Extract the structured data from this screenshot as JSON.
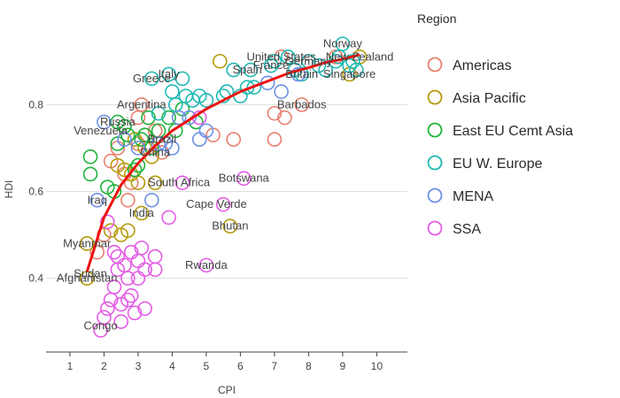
{
  "chart_data": {
    "type": "scatter",
    "xlabel": "CPI",
    "ylabel": "HDI",
    "xlim": [
      0.3,
      10.9
    ],
    "ylim": [
      0.23,
      0.98
    ],
    "xticks": [
      1,
      2,
      3,
      4,
      5,
      6,
      7,
      8,
      9,
      10
    ],
    "yticks": [
      0.4,
      0.6,
      0.8
    ],
    "ytick_labels": [
      "0.4",
      "0.6",
      "0.8"
    ],
    "grid": true,
    "legend": {
      "title": "Region",
      "placement": "right"
    },
    "series": [
      {
        "name": "Americas",
        "color": "#e8806f",
        "points": [
          {
            "x": 1.8,
            "y": 0.46
          },
          {
            "x": 2.0,
            "y": 0.5
          },
          {
            "x": 2.2,
            "y": 0.67
          },
          {
            "x": 2.4,
            "y": 0.7
          },
          {
            "x": 2.6,
            "y": 0.64
          },
          {
            "x": 2.7,
            "y": 0.58
          },
          {
            "x": 2.8,
            "y": 0.62
          },
          {
            "x": 3.0,
            "y": 0.71
          },
          {
            "x": 3.0,
            "y": 0.77
          },
          {
            "x": 3.1,
            "y": 0.8
          },
          {
            "x": 3.2,
            "y": 0.73
          },
          {
            "x": 3.3,
            "y": 0.7
          },
          {
            "x": 3.5,
            "y": 0.74
          },
          {
            "x": 3.7,
            "y": 0.69
          },
          {
            "x": 5.2,
            "y": 0.73
          },
          {
            "x": 5.8,
            "y": 0.72
          },
          {
            "x": 7.0,
            "y": 0.72
          },
          {
            "x": 7.0,
            "y": 0.78
          },
          {
            "x": 7.3,
            "y": 0.77
          },
          {
            "x": 7.8,
            "y": 0.8
          },
          {
            "x": 7.2,
            "y": 0.91
          },
          {
            "x": 8.8,
            "y": 0.91
          }
        ]
      },
      {
        "name": "Asia Pacific",
        "color": "#b59a0c",
        "points": [
          {
            "x": 1.5,
            "y": 0.48
          },
          {
            "x": 1.5,
            "y": 0.4
          },
          {
            "x": 2.2,
            "y": 0.51
          },
          {
            "x": 2.4,
            "y": 0.66
          },
          {
            "x": 2.5,
            "y": 0.5
          },
          {
            "x": 2.6,
            "y": 0.65
          },
          {
            "x": 2.7,
            "y": 0.51
          },
          {
            "x": 2.8,
            "y": 0.64
          },
          {
            "x": 2.9,
            "y": 0.72
          },
          {
            "x": 3.0,
            "y": 0.62
          },
          {
            "x": 3.1,
            "y": 0.55
          },
          {
            "x": 3.2,
            "y": 0.7
          },
          {
            "x": 3.4,
            "y": 0.68
          },
          {
            "x": 3.5,
            "y": 0.62
          },
          {
            "x": 5.7,
            "y": 0.52
          },
          {
            "x": 5.4,
            "y": 0.9
          },
          {
            "x": 9.2,
            "y": 0.87
          },
          {
            "x": 9.5,
            "y": 0.91
          }
        ]
      },
      {
        "name": "East EU Cemt Asia",
        "color": "#1fb33a",
        "points": [
          {
            "x": 1.6,
            "y": 0.68
          },
          {
            "x": 1.6,
            "y": 0.64
          },
          {
            "x": 2.1,
            "y": 0.61
          },
          {
            "x": 2.3,
            "y": 0.6
          },
          {
            "x": 2.4,
            "y": 0.71
          },
          {
            "x": 2.4,
            "y": 0.76
          },
          {
            "x": 2.6,
            "y": 0.75
          },
          {
            "x": 2.7,
            "y": 0.73
          },
          {
            "x": 2.9,
            "y": 0.65
          },
          {
            "x": 3.0,
            "y": 0.66
          },
          {
            "x": 3.1,
            "y": 0.72
          },
          {
            "x": 3.2,
            "y": 0.73
          },
          {
            "x": 3.3,
            "y": 0.77
          },
          {
            "x": 3.4,
            "y": 0.7
          },
          {
            "x": 3.6,
            "y": 0.74
          },
          {
            "x": 3.9,
            "y": 0.77
          },
          {
            "x": 4.1,
            "y": 0.74
          },
          {
            "x": 4.3,
            "y": 0.79
          },
          {
            "x": 4.7,
            "y": 0.76
          }
        ]
      },
      {
        "name": "EU W. Europe",
        "color": "#1fb9b4",
        "points": [
          {
            "x": 3.4,
            "y": 0.86
          },
          {
            "x": 3.6,
            "y": 0.78
          },
          {
            "x": 3.9,
            "y": 0.87
          },
          {
            "x": 4.0,
            "y": 0.83
          },
          {
            "x": 4.1,
            "y": 0.8
          },
          {
            "x": 4.3,
            "y": 0.86
          },
          {
            "x": 4.4,
            "y": 0.82
          },
          {
            "x": 4.6,
            "y": 0.81
          },
          {
            "x": 4.8,
            "y": 0.82
          },
          {
            "x": 5.0,
            "y": 0.81
          },
          {
            "x": 5.5,
            "y": 0.82
          },
          {
            "x": 5.6,
            "y": 0.83
          },
          {
            "x": 5.8,
            "y": 0.88
          },
          {
            "x": 6.0,
            "y": 0.82
          },
          {
            "x": 6.2,
            "y": 0.84
          },
          {
            "x": 6.4,
            "y": 0.84
          },
          {
            "x": 6.3,
            "y": 0.88
          },
          {
            "x": 6.9,
            "y": 0.89
          },
          {
            "x": 7.0,
            "y": 0.9
          },
          {
            "x": 7.4,
            "y": 0.91
          },
          {
            "x": 7.6,
            "y": 0.88
          },
          {
            "x": 7.8,
            "y": 0.87
          },
          {
            "x": 8.0,
            "y": 0.9
          },
          {
            "x": 8.3,
            "y": 0.89
          },
          {
            "x": 8.5,
            "y": 0.88
          },
          {
            "x": 8.8,
            "y": 0.9
          },
          {
            "x": 8.9,
            "y": 0.91
          },
          {
            "x": 9.0,
            "y": 0.94
          },
          {
            "x": 9.2,
            "y": 0.89
          },
          {
            "x": 9.3,
            "y": 0.9
          },
          {
            "x": 9.4,
            "y": 0.88
          }
        ]
      },
      {
        "name": "MENA",
        "color": "#6d91e6",
        "points": [
          {
            "x": 1.8,
            "y": 0.58
          },
          {
            "x": 2.0,
            "y": 0.76
          },
          {
            "x": 2.6,
            "y": 0.72
          },
          {
            "x": 3.0,
            "y": 0.7
          },
          {
            "x": 3.4,
            "y": 0.58
          },
          {
            "x": 3.6,
            "y": 0.71
          },
          {
            "x": 3.8,
            "y": 0.71
          },
          {
            "x": 4.0,
            "y": 0.7
          },
          {
            "x": 4.2,
            "y": 0.77
          },
          {
            "x": 4.5,
            "y": 0.77
          },
          {
            "x": 4.8,
            "y": 0.72
          },
          {
            "x": 5.0,
            "y": 0.74
          },
          {
            "x": 6.8,
            "y": 0.85
          },
          {
            "x": 7.2,
            "y": 0.83
          },
          {
            "x": 7.7,
            "y": 0.87
          }
        ]
      },
      {
        "name": "SSA",
        "color": "#e45ce6",
        "points": [
          {
            "x": 1.9,
            "y": 0.28
          },
          {
            "x": 2.0,
            "y": 0.31
          },
          {
            "x": 2.1,
            "y": 0.33
          },
          {
            "x": 2.2,
            "y": 0.35
          },
          {
            "x": 2.3,
            "y": 0.38
          },
          {
            "x": 2.4,
            "y": 0.42
          },
          {
            "x": 2.4,
            "y": 0.45
          },
          {
            "x": 2.5,
            "y": 0.34
          },
          {
            "x": 2.5,
            "y": 0.3
          },
          {
            "x": 2.6,
            "y": 0.43
          },
          {
            "x": 2.7,
            "y": 0.35
          },
          {
            "x": 2.7,
            "y": 0.4
          },
          {
            "x": 2.8,
            "y": 0.36
          },
          {
            "x": 2.8,
            "y": 0.46
          },
          {
            "x": 2.9,
            "y": 0.32
          },
          {
            "x": 3.0,
            "y": 0.4
          },
          {
            "x": 3.0,
            "y": 0.44
          },
          {
            "x": 3.1,
            "y": 0.47
          },
          {
            "x": 3.2,
            "y": 0.33
          },
          {
            "x": 3.2,
            "y": 0.42
          },
          {
            "x": 3.5,
            "y": 0.42
          },
          {
            "x": 3.5,
            "y": 0.45
          },
          {
            "x": 3.9,
            "y": 0.54
          },
          {
            "x": 4.3,
            "y": 0.62
          },
          {
            "x": 4.8,
            "y": 0.77
          },
          {
            "x": 5.0,
            "y": 0.43
          },
          {
            "x": 5.5,
            "y": 0.57
          },
          {
            "x": 6.1,
            "y": 0.63
          },
          {
            "x": 2.1,
            "y": 0.53
          },
          {
            "x": 2.3,
            "y": 0.46
          }
        ]
      }
    ],
    "annotations": [
      {
        "text": "Norway",
        "x": 9.0,
        "y": 0.94
      },
      {
        "text": "United States",
        "x": 7.2,
        "y": 0.91
      },
      {
        "text": "Germany",
        "x": 8.0,
        "y": 0.9
      },
      {
        "text": "New Zealand",
        "x": 9.5,
        "y": 0.91
      },
      {
        "text": "Spain",
        "x": 6.2,
        "y": 0.88
      },
      {
        "text": "France",
        "x": 6.9,
        "y": 0.89
      },
      {
        "text": "Britain",
        "x": 7.8,
        "y": 0.87
      },
      {
        "text": "Singapore",
        "x": 9.2,
        "y": 0.87
      },
      {
        "text": "Italy",
        "x": 3.9,
        "y": 0.87
      },
      {
        "text": "Greece",
        "x": 3.4,
        "y": 0.86
      },
      {
        "text": "Argentina",
        "x": 3.1,
        "y": 0.8
      },
      {
        "text": "Barbados",
        "x": 7.8,
        "y": 0.8
      },
      {
        "text": "Russia",
        "x": 2.4,
        "y": 0.76
      },
      {
        "text": "Venezuela",
        "x": 1.9,
        "y": 0.74
      },
      {
        "text": "Brazil",
        "x": 3.7,
        "y": 0.72
      },
      {
        "text": "China",
        "x": 3.5,
        "y": 0.69
      },
      {
        "text": "South Africa",
        "x": 4.2,
        "y": 0.62
      },
      {
        "text": "Botswana",
        "x": 6.1,
        "y": 0.63
      },
      {
        "text": "Iraq",
        "x": 1.8,
        "y": 0.58
      },
      {
        "text": "Cape Verde",
        "x": 5.3,
        "y": 0.57
      },
      {
        "text": "India",
        "x": 3.1,
        "y": 0.55
      },
      {
        "text": "Bhutan",
        "x": 5.7,
        "y": 0.52
      },
      {
        "text": "Myanmar",
        "x": 1.5,
        "y": 0.48
      },
      {
        "text": "Rwanda",
        "x": 5.0,
        "y": 0.43
      },
      {
        "text": "Sudan",
        "x": 1.6,
        "y": 0.41
      },
      {
        "text": "Afghanistan",
        "x": 1.5,
        "y": 0.4
      },
      {
        "text": "Congo",
        "x": 1.9,
        "y": 0.29
      }
    ],
    "trend_line": {
      "color": "#ee1111",
      "points": [
        {
          "x": 1.5,
          "y": 0.415
        },
        {
          "x": 2.0,
          "y": 0.54
        },
        {
          "x": 2.5,
          "y": 0.615
        },
        {
          "x": 3.0,
          "y": 0.665
        },
        {
          "x": 3.5,
          "y": 0.705
        },
        {
          "x": 4.0,
          "y": 0.74
        },
        {
          "x": 4.5,
          "y": 0.765
        },
        {
          "x": 5.0,
          "y": 0.79
        },
        {
          "x": 5.5,
          "y": 0.81
        },
        {
          "x": 6.0,
          "y": 0.83
        },
        {
          "x": 6.5,
          "y": 0.845
        },
        {
          "x": 7.0,
          "y": 0.86
        },
        {
          "x": 7.5,
          "y": 0.875
        },
        {
          "x": 8.0,
          "y": 0.885
        },
        {
          "x": 8.5,
          "y": 0.897
        },
        {
          "x": 9.0,
          "y": 0.905
        },
        {
          "x": 9.5,
          "y": 0.915
        }
      ]
    }
  }
}
